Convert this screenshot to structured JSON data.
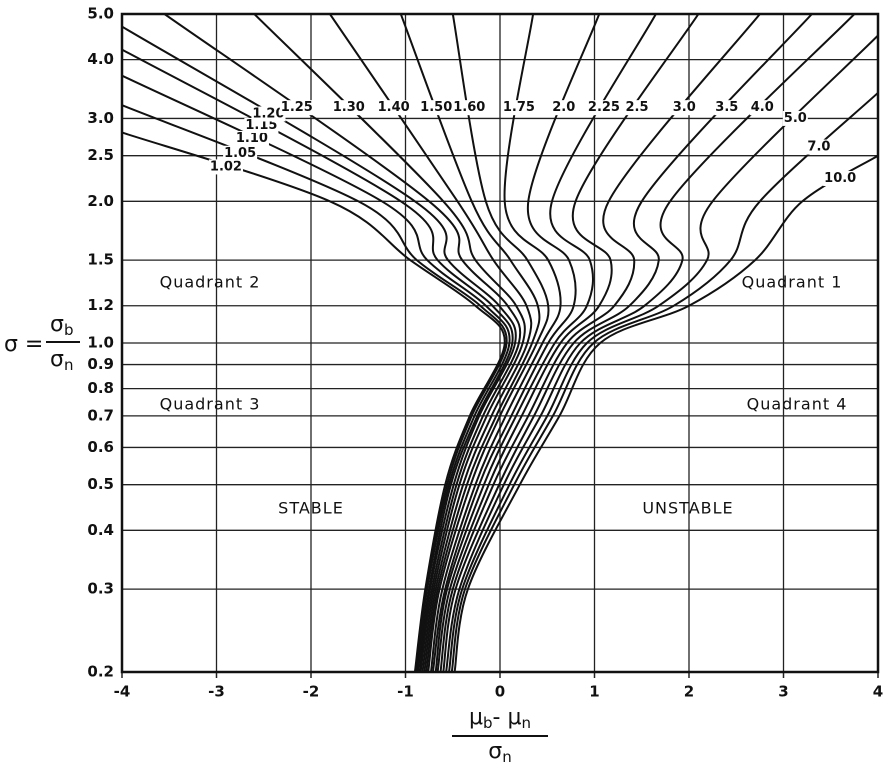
{
  "chart_data": {
    "type": "line",
    "y_scale": "log",
    "grid": true,
    "line_color": "#111111",
    "xlim": [
      -4,
      4
    ],
    "xticks": [
      -4,
      -3,
      -2,
      -1,
      0,
      1,
      2,
      3,
      4
    ],
    "ylim": [
      0.2,
      5
    ],
    "yticks": [
      0.2,
      0.3,
      0.4,
      0.5,
      0.6,
      0.7,
      0.8,
      0.9,
      {
        "value": 1,
        "label": "1.0"
      },
      1.2,
      1.5,
      {
        "value": 2,
        "label": "2.0"
      },
      2.5,
      {
        "value": 3,
        "label": "3.0"
      },
      {
        "value": 4,
        "label": "4.0"
      },
      {
        "value": 5,
        "label": "5.0"
      }
    ],
    "y_label": {
      "lhs": "σ =",
      "numerator": [
        "σ",
        "b"
      ],
      "denominator": [
        "σ",
        "n"
      ]
    },
    "x_label": {
      "numerator": [
        "μ",
        "b",
        "- μ",
        "n"
      ],
      "denominator": [
        "σ",
        "n"
      ]
    },
    "annotations": [
      "Quadrant 2",
      "Quadrant 1",
      "Quadrant 3",
      "Quadrant 4",
      "STABLE",
      "UNSTABLE"
    ],
    "series": [
      {
        "name": "1.02",
        "x": [
          -4,
          -1.8,
          -0.95,
          -0.26,
          0.05,
          -0.32,
          -0.58,
          -0.79,
          -0.9
        ],
        "y": [
          2.8,
          2,
          1.5,
          1.2,
          1,
          0.7,
          0.5,
          0.3,
          0.2
        ]
      },
      {
        "name": "1.05",
        "x": [
          -4,
          -1.5,
          -0.88,
          -0.21,
          0.07,
          -0.3,
          -0.56,
          -0.78,
          -0.89
        ],
        "y": [
          3.2,
          2,
          1.5,
          1.2,
          1,
          0.7,
          0.5,
          0.3,
          0.2
        ]
      },
      {
        "name": "1.10",
        "x": [
          -4,
          -1.25,
          -0.77,
          -0.15,
          0.1,
          -0.27,
          -0.54,
          -0.77,
          -0.88
        ],
        "y": [
          3.7,
          2,
          1.5,
          1.2,
          1,
          0.7,
          0.5,
          0.3,
          0.2
        ]
      },
      {
        "name": "1.15",
        "x": [
          -4,
          -1.05,
          -0.66,
          -0.08,
          0.13,
          -0.24,
          -0.52,
          -0.75,
          -0.87
        ],
        "y": [
          4.2,
          2,
          1.5,
          1.2,
          1,
          0.7,
          0.5,
          0.3,
          0.2
        ]
      },
      {
        "name": "1.20",
        "x": [
          -4,
          -0.9,
          -0.55,
          -0.01,
          0.16,
          -0.22,
          -0.49,
          -0.74,
          -0.85
        ],
        "y": [
          4.7,
          2,
          1.5,
          1.2,
          1,
          0.7,
          0.5,
          0.3,
          0.2
        ]
      },
      {
        "name": "1.25",
        "x": [
          -3.55,
          -0.75,
          -0.4,
          0.08,
          0.2,
          -0.18,
          -0.46,
          -0.72,
          -0.84
        ],
        "y": [
          5,
          2,
          1.5,
          1.2,
          1,
          0.7,
          0.5,
          0.3,
          0.2
        ]
      },
      {
        "name": "1.30",
        "x": [
          -2.6,
          -0.6,
          -0.26,
          0.17,
          0.24,
          -0.14,
          -0.43,
          -0.7,
          -0.82
        ],
        "y": [
          5,
          2,
          1.5,
          1.2,
          1,
          0.7,
          0.5,
          0.3,
          0.2
        ]
      },
      {
        "name": "1.40",
        "x": [
          -1.8,
          -0.45,
          -0.07,
          0.28,
          0.29,
          -0.09,
          -0.39,
          -0.68,
          -0.8
        ],
        "y": [
          5,
          2,
          1.5,
          1.2,
          1,
          0.7,
          0.5,
          0.3,
          0.2
        ]
      },
      {
        "name": "1.50",
        "x": [
          -1.05,
          -0.3,
          0.11,
          0.4,
          0.34,
          -0.04,
          -0.35,
          -0.66,
          -0.78
        ],
        "y": [
          5,
          2,
          1.5,
          1.2,
          1,
          0.7,
          0.5,
          0.3,
          0.2
        ]
      },
      {
        "name": "1.60",
        "x": [
          -0.5,
          -0.15,
          0.29,
          0.51,
          0.39,
          0,
          -0.31,
          -0.64,
          -0.76
        ],
        "y": [
          5,
          2,
          1.5,
          1.2,
          1,
          0.7,
          0.5,
          0.3,
          0.2
        ]
      },
      {
        "name": "1.75",
        "x": [
          0.35,
          0.05,
          0.51,
          0.64,
          0.45,
          0.06,
          -0.26,
          -0.61,
          -0.73
        ],
        "y": [
          5,
          2,
          1.5,
          1.2,
          1,
          0.7,
          0.5,
          0.3,
          0.2
        ]
      },
      {
        "name": "2.0",
        "x": [
          1.05,
          0.3,
          0.73,
          0.78,
          0.51,
          0.12,
          -0.22,
          -0.58,
          -0.71
        ],
        "y": [
          5,
          2,
          1.5,
          1.2,
          1,
          0.7,
          0.5,
          0.3,
          0.2
        ]
      },
      {
        "name": "2.25",
        "x": [
          1.65,
          0.55,
          0.95,
          0.92,
          0.58,
          0.17,
          -0.17,
          -0.56,
          -0.68
        ],
        "y": [
          5,
          2,
          1.5,
          1.2,
          1,
          0.7,
          0.5,
          0.3,
          0.2
        ]
      },
      {
        "name": "2.5",
        "x": [
          2.1,
          0.8,
          1.17,
          1.05,
          0.64,
          0.23,
          -0.12,
          -0.53,
          -0.66
        ],
        "y": [
          5,
          2,
          1.5,
          1.2,
          1,
          0.7,
          0.5,
          0.3,
          0.2
        ]
      },
      {
        "name": "3.0",
        "x": [
          2.75,
          1.15,
          1.42,
          1.21,
          0.71,
          0.3,
          -0.07,
          -0.5,
          -0.63
        ],
        "y": [
          5,
          2,
          1.5,
          1.2,
          1,
          0.7,
          0.5,
          0.3,
          0.2
        ]
      },
      {
        "name": "3.5",
        "x": [
          3.3,
          1.5,
          1.68,
          1.37,
          0.78,
          0.36,
          -0.01,
          -0.47,
          -0.6
        ],
        "y": [
          5,
          2,
          1.5,
          1.2,
          1,
          0.7,
          0.5,
          0.3,
          0.2
        ]
      },
      {
        "name": "4.0",
        "x": [
          3.75,
          1.8,
          1.93,
          1.53,
          0.85,
          0.43,
          0.04,
          -0.43,
          -0.57
        ],
        "y": [
          5,
          2,
          1.5,
          1.2,
          1,
          0.7,
          0.5,
          0.3,
          0.2
        ]
      },
      {
        "name": "5.0",
        "x": [
          4,
          2.25,
          2.19,
          1.68,
          0.92,
          0.5,
          0.1,
          -0.4,
          -0.54
        ],
        "y": [
          4.5,
          2,
          1.5,
          1.2,
          1,
          0.7,
          0.5,
          0.3,
          0.2
        ]
      },
      {
        "name": "7.0",
        "x": [
          4,
          2.75,
          2.44,
          1.84,
          0.99,
          0.56,
          0.15,
          -0.37,
          -0.51
        ],
        "y": [
          3.4,
          2,
          1.5,
          1.2,
          1,
          0.7,
          0.5,
          0.3,
          0.2
        ]
      },
      {
        "name": "10.0",
        "x": [
          4,
          3.2,
          2.7,
          2,
          1.06,
          0.63,
          0.21,
          -0.34,
          -0.48
        ],
        "y": [
          2.5,
          2,
          1.5,
          1.2,
          1,
          0.7,
          0.5,
          0.3,
          0.2
        ]
      }
    ]
  }
}
